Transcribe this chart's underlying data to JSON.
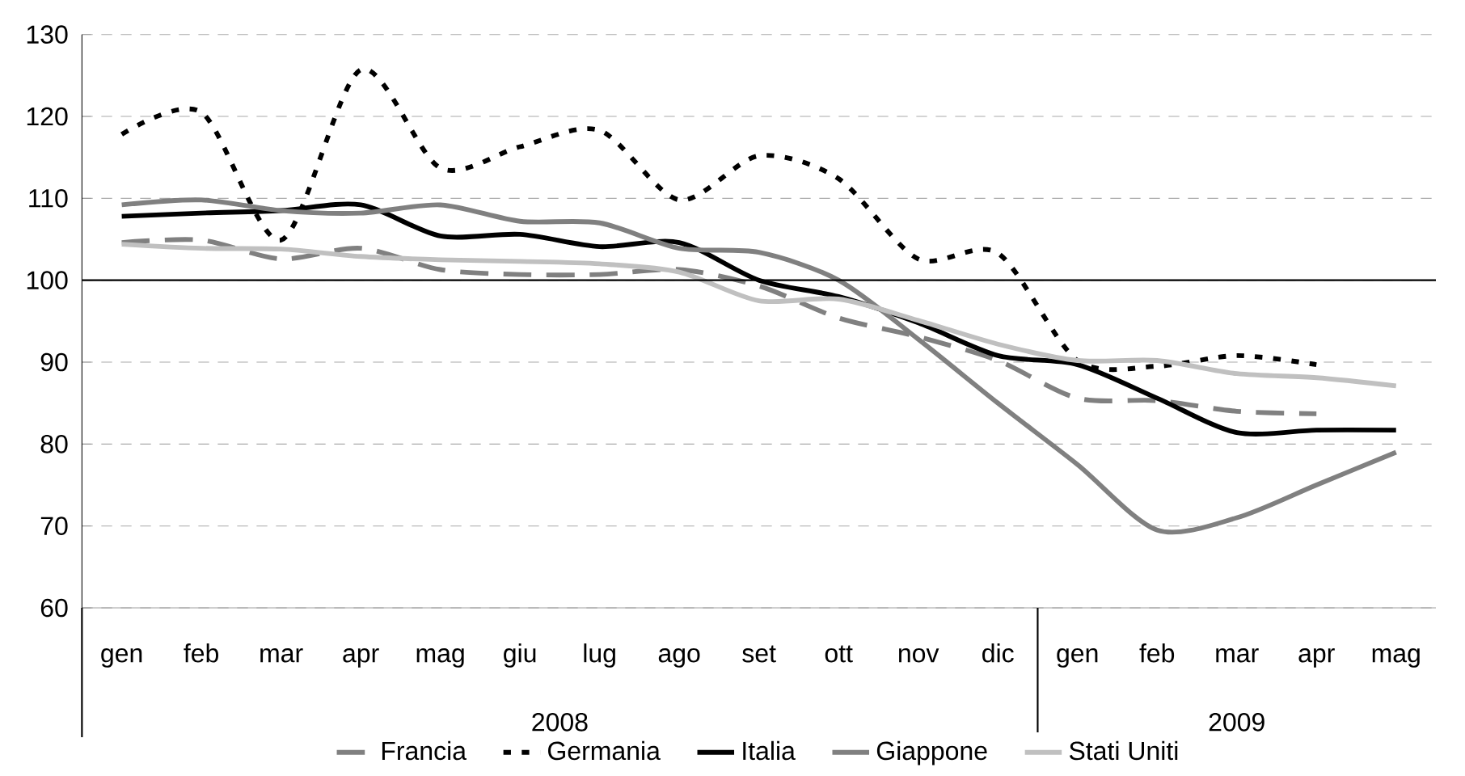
{
  "chart_data": {
    "type": "line",
    "categories": [
      "gen",
      "feb",
      "mar",
      "apr",
      "mag",
      "giu",
      "lug",
      "ago",
      "set",
      "ott",
      "nov",
      "dic",
      "gen",
      "feb",
      "mar",
      "apr",
      "mag"
    ],
    "ylim": [
      60,
      130
    ],
    "yticks": [
      60,
      70,
      80,
      90,
      100,
      110,
      120,
      130
    ],
    "grid": "y",
    "legend": "bottom",
    "annotations": [
      "2008",
      "2009"
    ],
    "ref_lines": [
      {
        "axis": "y",
        "value": 100,
        "color": "#000000"
      }
    ],
    "series": [
      {
        "name": "Francia",
        "color": "#808080",
        "line_style": "dashed",
        "values": [
          104.6,
          104.9,
          102.6,
          103.9,
          101.3,
          100.7,
          100.7,
          101.3,
          99.3,
          95.4,
          93.1,
          90.2,
          85.6,
          85.3,
          84,
          83.7,
          null
        ]
      },
      {
        "name": "Germania",
        "color": "#000000",
        "line_style": "dotted",
        "values": [
          117.8,
          120.5,
          104.9,
          125.7,
          113.7,
          116.3,
          118.3,
          109.8,
          115.2,
          112.4,
          102.6,
          103.3,
          90.2,
          89.5,
          90.8,
          89.7,
          null
        ]
      },
      {
        "name": "Italia",
        "color": "#000000",
        "line_style": "solid",
        "values": [
          107.8,
          108.2,
          108.5,
          109.2,
          105.4,
          105.6,
          104.1,
          104.6,
          100,
          98,
          94.8,
          90.8,
          89.7,
          85.6,
          81.4,
          81.7,
          81.7
        ]
      },
      {
        "name": "Giappone",
        "color": "#808080",
        "line_style": "solid",
        "values": [
          109.2,
          109.8,
          108.5,
          108.2,
          109.2,
          107.2,
          107,
          103.9,
          103.4,
          100,
          92.8,
          85,
          77.5,
          69.5,
          71,
          75,
          79
        ]
      },
      {
        "name": "Stati Uniti",
        "color": "#c0c0c0",
        "line_style": "solid",
        "values": [
          104.4,
          103.9,
          103.8,
          102.9,
          102.5,
          102.3,
          102,
          101,
          97.5,
          97.7,
          95.1,
          92.2,
          90.2,
          90.2,
          88.6,
          88.1,
          87.1
        ]
      }
    ]
  }
}
